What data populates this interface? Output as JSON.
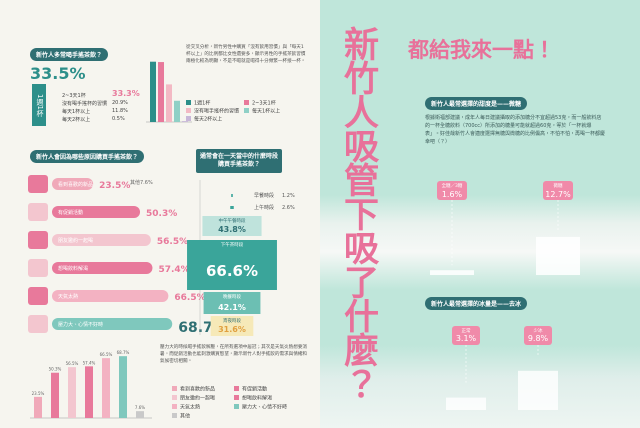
{
  "left_page": {
    "frequency": {
      "title": "新竹人多常喝手搖茶飲？",
      "headline": {
        "value": 33.5,
        "label": "33.5%"
      },
      "headline_name": "1週1杯",
      "headline_color": "#2d8f8a",
      "body": "從交叉分析，新竹男性中購買「沒有飲用習慣」與「每天1杯以上」的比例都比女性還要多，顯示男性的手搖茶飲習慣兩極化較為明顯，不是不喝就是喝得十分頻繁一杯接一杯。",
      "items": [
        {
          "name": "2~3天1杯",
          "value": 33.3,
          "label": "33.3%",
          "color": "#e8799b"
        },
        {
          "name": "沒有喝手搖杯的習慣",
          "value": 20.9,
          "label": "20.9%",
          "color": "#f3b9c4"
        },
        {
          "name": "每天1杯以上",
          "value": 11.8,
          "label": "11.8%",
          "color": "#8fd0c6"
        },
        {
          "name": "每天2杯以上",
          "value": 0.5,
          "label": "0.5%",
          "color": "#c8b7d8"
        }
      ]
    },
    "reasons": {
      "title": "新竹人會因為哪些原因購買手搖茶飲？",
      "other": {
        "name": "其他",
        "value": 7.6,
        "label": "7.6%",
        "color": "#c9c9c9"
      },
      "items": [
        {
          "name": "看到喜歡的新品",
          "value": 23.5,
          "label": "23.5%",
          "color": "#f0a9b9"
        },
        {
          "name": "有促銷活動",
          "value": 50.3,
          "label": "50.3%",
          "color": "#e8799b"
        },
        {
          "name": "朋友邀約一起喝",
          "value": 56.5,
          "label": "56.5%",
          "color": "#f3c6cf"
        },
        {
          "name": "想喝飲料解渴",
          "value": 57.4,
          "label": "57.4%",
          "color": "#e8799b"
        },
        {
          "name": "天氣太熱",
          "value": 66.5,
          "label": "66.5%",
          "color": "#f3b2c2"
        },
        {
          "name": "壓力大、心情不好時",
          "value": 68.7,
          "label": "68.7%",
          "color": "#7fc8bd"
        }
      ]
    },
    "time": {
      "title": "通常會在一天當中的什麼時段購買手搖茶飲？",
      "minor": [
        {
          "name": "早餐時段",
          "value": 1.2,
          "label": "1.2%"
        },
        {
          "name": "上午時段",
          "value": 2.6,
          "label": "2.6%"
        }
      ],
      "segments": [
        {
          "name": "中午午餐時段",
          "value": 43.8,
          "label": "43.8%",
          "color": "#bfe3dc"
        },
        {
          "name": "下午茶時段",
          "value": 66.6,
          "label": "66.6%",
          "color": "#3aa59a"
        },
        {
          "name": "晚餐時段",
          "value": 42.1,
          "label": "42.1%",
          "color": "#6cbfb3"
        },
        {
          "name": "宵夜時段",
          "value": 31.6,
          "label": "31.6%",
          "color": "#f6e9b8"
        }
      ]
    },
    "note": "壓力大的時候喝手搖飲解壓，在所有選項中居冠；其次是天氣炎熱想要消暑，而促銷活動也能刺激購買慾望，顯示新竹人對手搖飲的需求與情緒和氣候密切相關。"
  },
  "right_page": {
    "headline": "都給我來一點！",
    "vertical_title": "新竹人吸管下吸了什麼？",
    "sweetness": {
      "title": "新竹人最常選擇的甜度是——微糖",
      "body": "根據衛福部建議，成年人每日建議攝取的添加糖分不宜超過53克，而一般飲料店的一杯全糖飲料（700cc）所添加的糖量可能就超過60克，等於「一杯就爆表」。好佳哉新竹人會適度選擇無糖與微糖的比例偏高，不怕不怕，再喝一杯都慶幸吧（？）",
      "items": [
        {
          "name": "全糖／3糖",
          "value": 1.6,
          "label": "1.6%"
        },
        {
          "name": "微糖",
          "value": 12.7,
          "label": "12.7%"
        }
      ]
    },
    "ice": {
      "title": "新竹人最常選擇的冰量是——去冰",
      "items": [
        {
          "name": "正常",
          "value": 3.1,
          "label": "3.1%"
        },
        {
          "name": "少冰",
          "value": 9.8,
          "label": "9.8%"
        }
      ]
    }
  }
}
